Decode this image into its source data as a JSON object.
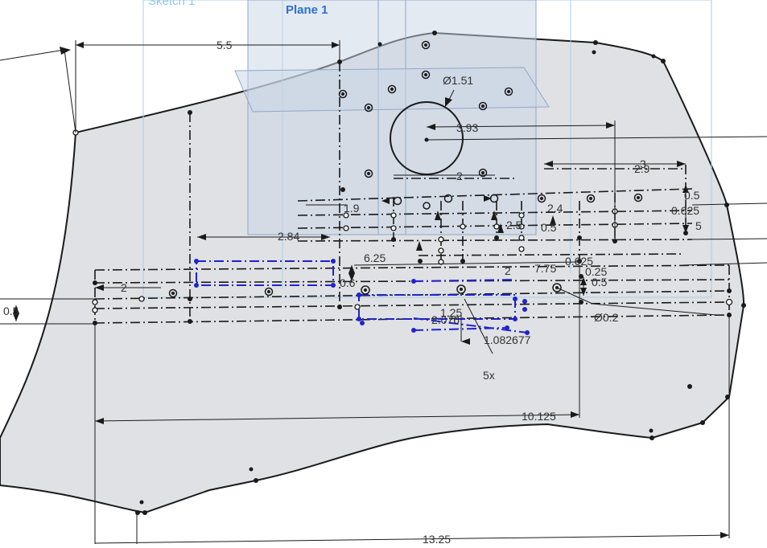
{
  "labels": {
    "sketch": "Sketch 1",
    "plane": "Plane 1"
  },
  "dimensions": {
    "d_5_5": "5.5",
    "d_dia_1_51": "Ø1.51",
    "d_3_93": "3.93",
    "d_2_top": "2",
    "d_1_9": "1.9",
    "d_3": "3",
    "d_2_9": "2.9",
    "d_0_5_right": "0.5",
    "d_0_625_right": "0.625",
    "d_5_right": "5",
    "d_2_84": "2.84",
    "d_6_25": "6.25",
    "d_0_6": "0.6",
    "d_2_left": "2",
    "d_0_5_left": "0.5",
    "d_2_mid": "2",
    "d_7_75": "7.75",
    "d_0_625_mid": "0.625",
    "d_0_25": "0.25",
    "d_0_5_mid": "0.5",
    "d_dia_0_2": "Ø0.2",
    "d_1_25": "1.25",
    "d_2_076": "2.076",
    "d_1_082677": "1.082677",
    "d_5x": "5x",
    "d_10_125": "10.125",
    "d_13_25": "13.25",
    "d_2_4": "2.4",
    "d_2_5": "2.5",
    "d_0_5_small": "0.5"
  },
  "colors": {
    "background": "#ffffff",
    "part_fill": "#dfe1e4",
    "outline": "#1a1a1a",
    "plane_fill": "#c9d6e6",
    "plane_border": "#8ea8c8",
    "sketch_line": "#a8cde9",
    "selection": "#2222cc"
  }
}
